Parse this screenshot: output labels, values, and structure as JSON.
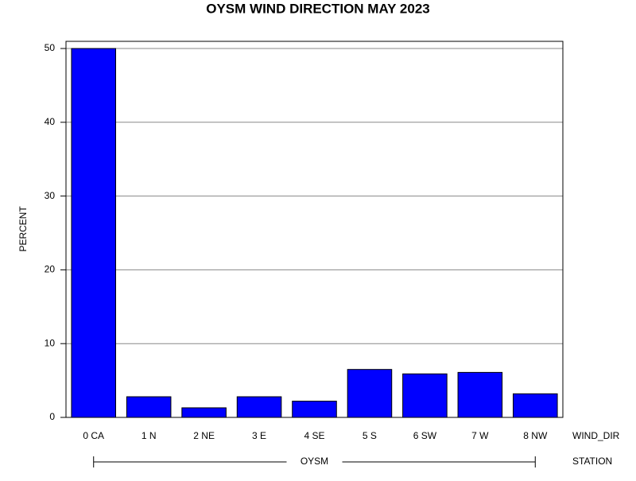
{
  "chart_data": {
    "type": "bar",
    "title": "OYSM WIND DIRECTION MAY 2023",
    "y_label": "PERCENT",
    "x_label": "WIND_DIR",
    "group_label": "STATION",
    "group": "OYSM",
    "categories": [
      "0 CA",
      "1 N",
      "2 NE",
      "3 E",
      "4 SE",
      "5 S",
      "6 SW",
      "7 W",
      "8 NW"
    ],
    "values": [
      50,
      2.8,
      1.3,
      2.8,
      2.2,
      6.5,
      5.9,
      6.1,
      3.2
    ],
    "color": "#0000ff",
    "ylim": [
      0,
      50
    ],
    "yticks": [
      0,
      10,
      20,
      30,
      40,
      50
    ],
    "grid": true
  }
}
